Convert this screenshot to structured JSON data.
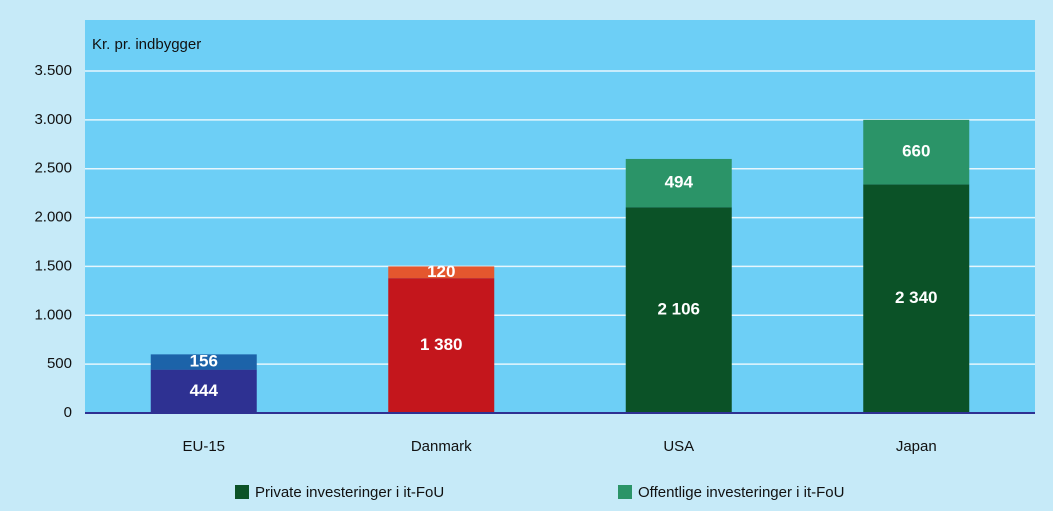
{
  "chart_data": {
    "type": "stacked-bar",
    "y_axis_label": "Kr. pr. indbygger",
    "categories": [
      "EU-15",
      "Danmark",
      "USA",
      "Japan"
    ],
    "series": [
      {
        "name": "Private investeringer i it-FoU",
        "color": "#0b5227",
        "colors": [
          "#2e3192",
          "#c4161c",
          "#0b5227",
          "#0b5227"
        ],
        "values": [
          444,
          1380,
          2106,
          2340
        ],
        "value_labels": [
          "444",
          "1 380",
          "2 106",
          "2 340"
        ]
      },
      {
        "name": "Offentlige investeringer i it-FoU",
        "color": "#2b9468",
        "colors": [
          "#1c63a9",
          "#e4572e",
          "#2b9468",
          "#2b9468"
        ],
        "values": [
          156,
          120,
          494,
          660
        ],
        "value_labels": [
          "156",
          "120",
          "494",
          "660"
        ]
      }
    ],
    "ylim": [
      0,
      3500
    ],
    "yticks": [
      0,
      500,
      {
        "value": 1000,
        "label": "1.000"
      },
      {
        "value": 1500,
        "label": "1.500"
      },
      {
        "value": 2000,
        "label": "2.000"
      },
      {
        "value": 2500,
        "label": "2.500"
      },
      {
        "value": 3000,
        "label": "3.000"
      },
      {
        "value": 3500,
        "label": "3.500"
      }
    ],
    "grid": true
  }
}
